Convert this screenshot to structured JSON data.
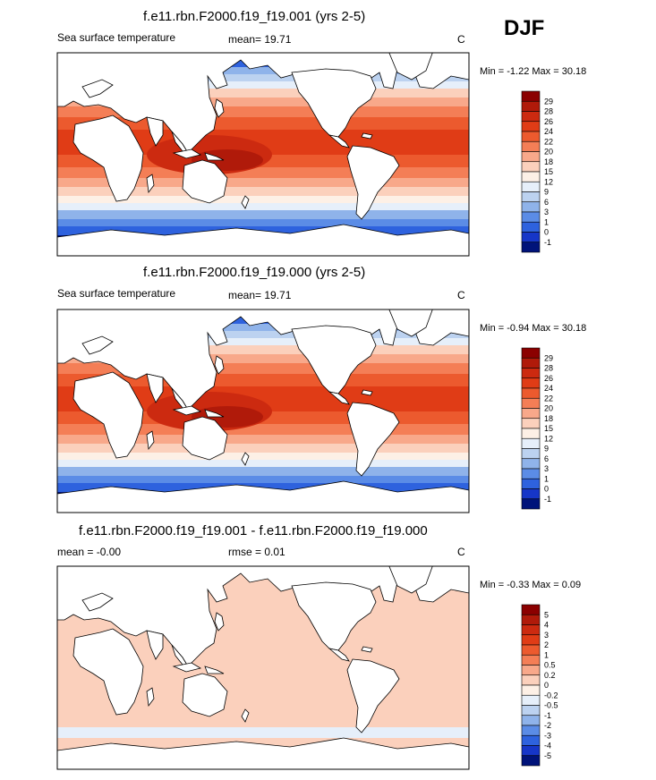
{
  "season": "DJF",
  "chart_data": [
    {
      "type": "heatmap",
      "title": "f.e11.rbn.F2000.f19_f19.001 (yrs 2-5)",
      "left_label": "Sea surface temperature",
      "mean_label": "mean=  19.71",
      "units": "C",
      "minmax": "Min =  -1.22 Max =  30.18",
      "colorbar_labels": [
        "29",
        "28",
        "26",
        "24",
        "22",
        "20",
        "18",
        "15",
        "12",
        "9",
        "6",
        "3",
        "1",
        "0",
        "-1"
      ],
      "colorbar_colors": [
        "#8b0000",
        "#b01a0a",
        "#cc2a10",
        "#e03c16",
        "#ec5a2e",
        "#f47e56",
        "#f8a88a",
        "#fbd0bc",
        "#fdf0e6",
        "#e6effa",
        "#bcd2f0",
        "#8fb3ea",
        "#5b8ce6",
        "#2e62de",
        "#1636c8",
        "#00137a"
      ],
      "field": "ambient"
    },
    {
      "type": "heatmap",
      "title": "f.e11.rbn.F2000.f19_f19.000 (yrs 2-5)",
      "left_label": "Sea surface temperature",
      "mean_label": "mean=  19.71",
      "units": "C",
      "minmax": "Min =  -0.94 Max =  30.18",
      "colorbar_labels": [
        "29",
        "28",
        "26",
        "24",
        "22",
        "20",
        "18",
        "15",
        "12",
        "9",
        "6",
        "3",
        "1",
        "0",
        "-1"
      ],
      "colorbar_colors": [
        "#8b0000",
        "#b01a0a",
        "#cc2a10",
        "#e03c16",
        "#ec5a2e",
        "#f47e56",
        "#f8a88a",
        "#fbd0bc",
        "#fdf0e6",
        "#e6effa",
        "#bcd2f0",
        "#8fb3ea",
        "#5b8ce6",
        "#2e62de",
        "#1636c8",
        "#00137a"
      ],
      "field": "ambient"
    },
    {
      "type": "heatmap",
      "title": "f.e11.rbn.F2000.f19_f19.001 - f.e11.rbn.F2000.f19_f19.000",
      "left_label": "mean =  -0.00",
      "mean_label": "rmse =   0.01",
      "units": "C",
      "minmax": "Min =  -0.33 Max =   0.09",
      "colorbar_labels": [
        "5",
        "4",
        "3",
        "2",
        "1",
        "0.5",
        "0.2",
        "0",
        "-0.2",
        "-0.5",
        "-1",
        "-2",
        "-3",
        "-4",
        "-5"
      ],
      "colorbar_colors": [
        "#8b0000",
        "#b01a0a",
        "#cc2a10",
        "#e03c16",
        "#ec5a2e",
        "#f47e56",
        "#f8a88a",
        "#fbd0bc",
        "#fdf0e6",
        "#e6effa",
        "#bcd2f0",
        "#8fb3ea",
        "#5b8ce6",
        "#2e62de",
        "#1636c8",
        "#00137a"
      ],
      "field": "difference"
    }
  ]
}
